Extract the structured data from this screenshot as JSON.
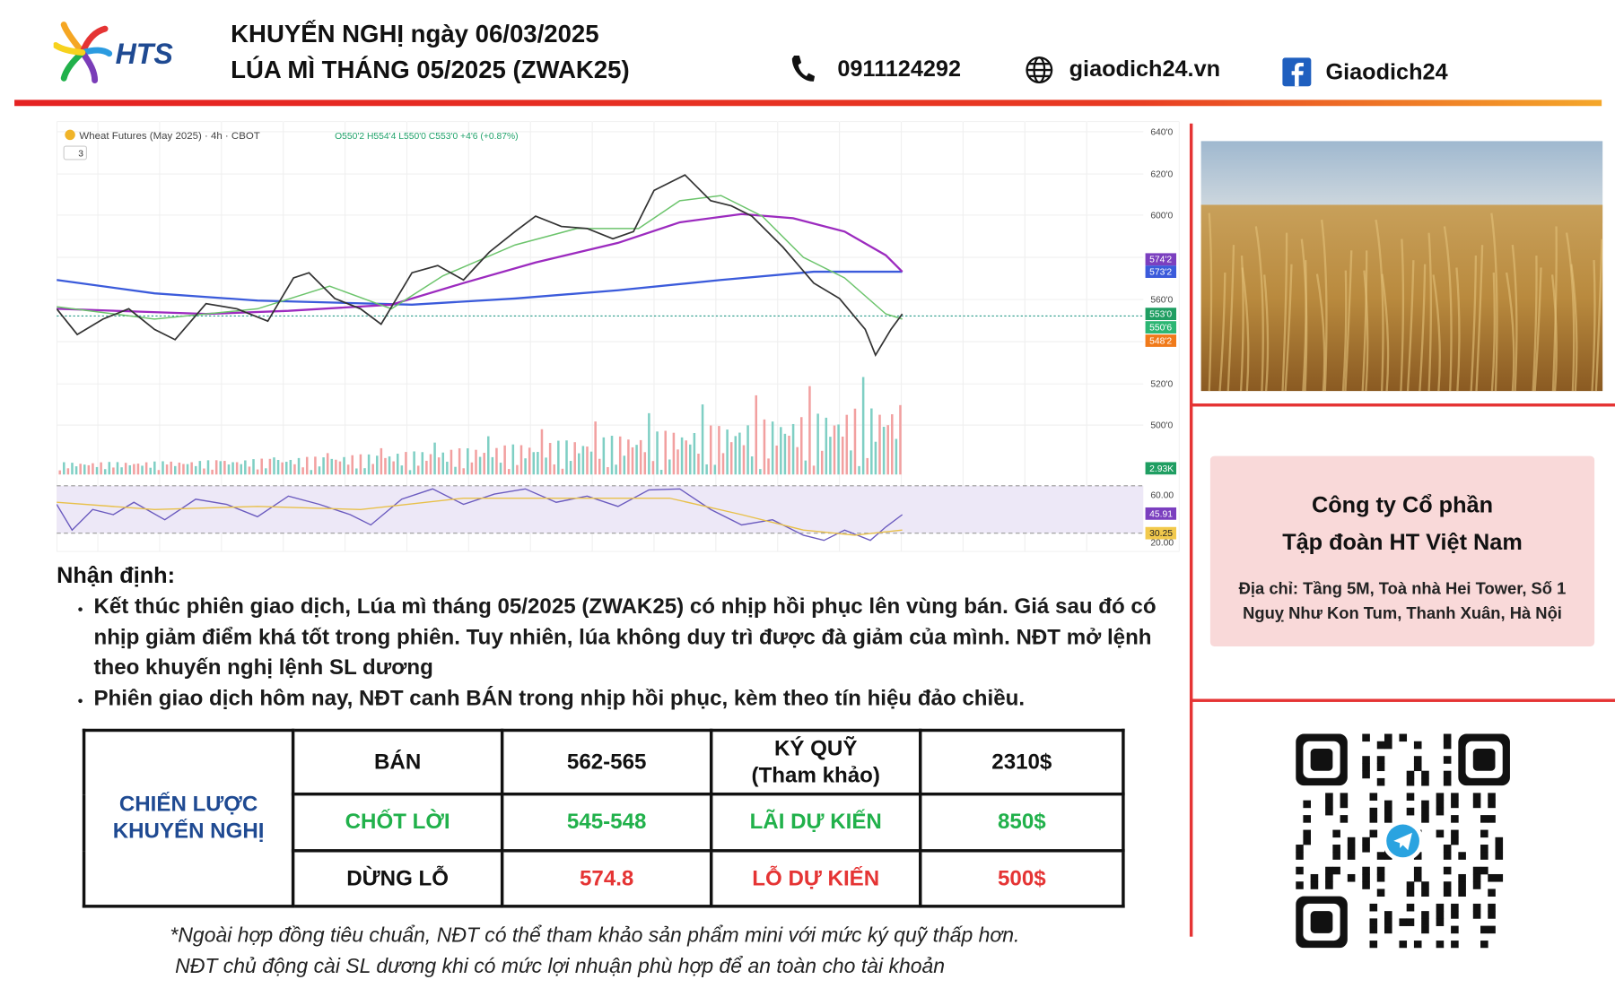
{
  "header": {
    "logo_text": "HTS",
    "title_line1": "KHUYẾN NGHỊ ngày 06/03/2025",
    "title_line2": "LÚA MÌ THÁNG 05/2025 (ZWAK25)",
    "phone": "0911124292",
    "website": "giaodich24.vn",
    "facebook": "Giaodich24"
  },
  "chart": {
    "symbol": "Wheat Futures (May 2025) · 4h · CBOT",
    "ohlc": "O550'2 H554'4 L550'0 C553'0 +4'6 (+0.87%)",
    "indicator_count": "3",
    "price_labels": [
      "640'0",
      "620'0",
      "600'0",
      "560'0",
      "520'0",
      "500'0"
    ],
    "badges": [
      "574'2",
      "573'2",
      "553'0",
      "550'6",
      "548'2",
      "2.93K",
      "45.91",
      "30.25"
    ],
    "rsi_labels": [
      "60.00",
      "20.00"
    ]
  },
  "analysis": {
    "heading": "Nhận định:",
    "bullets": [
      "Kết thúc phiên giao dịch, Lúa mì tháng 05/2025 (ZWAK25) có nhịp hồi phục lên vùng bán. Giá sau đó có nhịp giảm điểm khá tốt trong phiên. Tuy nhiên, lúa không duy trì được đà giảm của mình. NĐT mở lệnh theo khuyến nghị lệnh SL dương",
      "Phiên giao dịch hôm nay, NĐT canh BÁN trong nhịp hồi phục, kèm theo tín hiệu đảo chiều."
    ]
  },
  "table": {
    "strategy": "CHIẾN LƯỢC\nKHUYẾN NGHỊ",
    "rows": [
      [
        "BÁN",
        "562-565",
        "KÝ QUỸ\n(Tham khảo)",
        "2310$"
      ],
      [
        "CHỐT LỜI",
        "545-548",
        "LÃI DỰ KIẾN",
        "850$"
      ],
      [
        "DỪNG LỖ",
        "574.8",
        "LỖ DỰ KIẾN",
        "500$"
      ]
    ]
  },
  "company": {
    "name_line1": "Công ty Cổ phần",
    "name_line2": "Tập đoàn HT Việt Nam",
    "address": "Địa chỉ: Tầng 5M, Toà nhà Hei Tower, Số 1 Nguỵ Như Kon Tum, Thanh Xuân, Hà Nội"
  },
  "footnotes": [
    "*Ngoài hợp đồng tiêu chuẩn, NĐT có thể tham khảo sản phẩm mini với mức ký quỹ thấp hơn.",
    "NĐT chủ động cài SL dương khi có mức lợi nhuận phù hợp để an toàn cho tài khoản"
  ]
}
